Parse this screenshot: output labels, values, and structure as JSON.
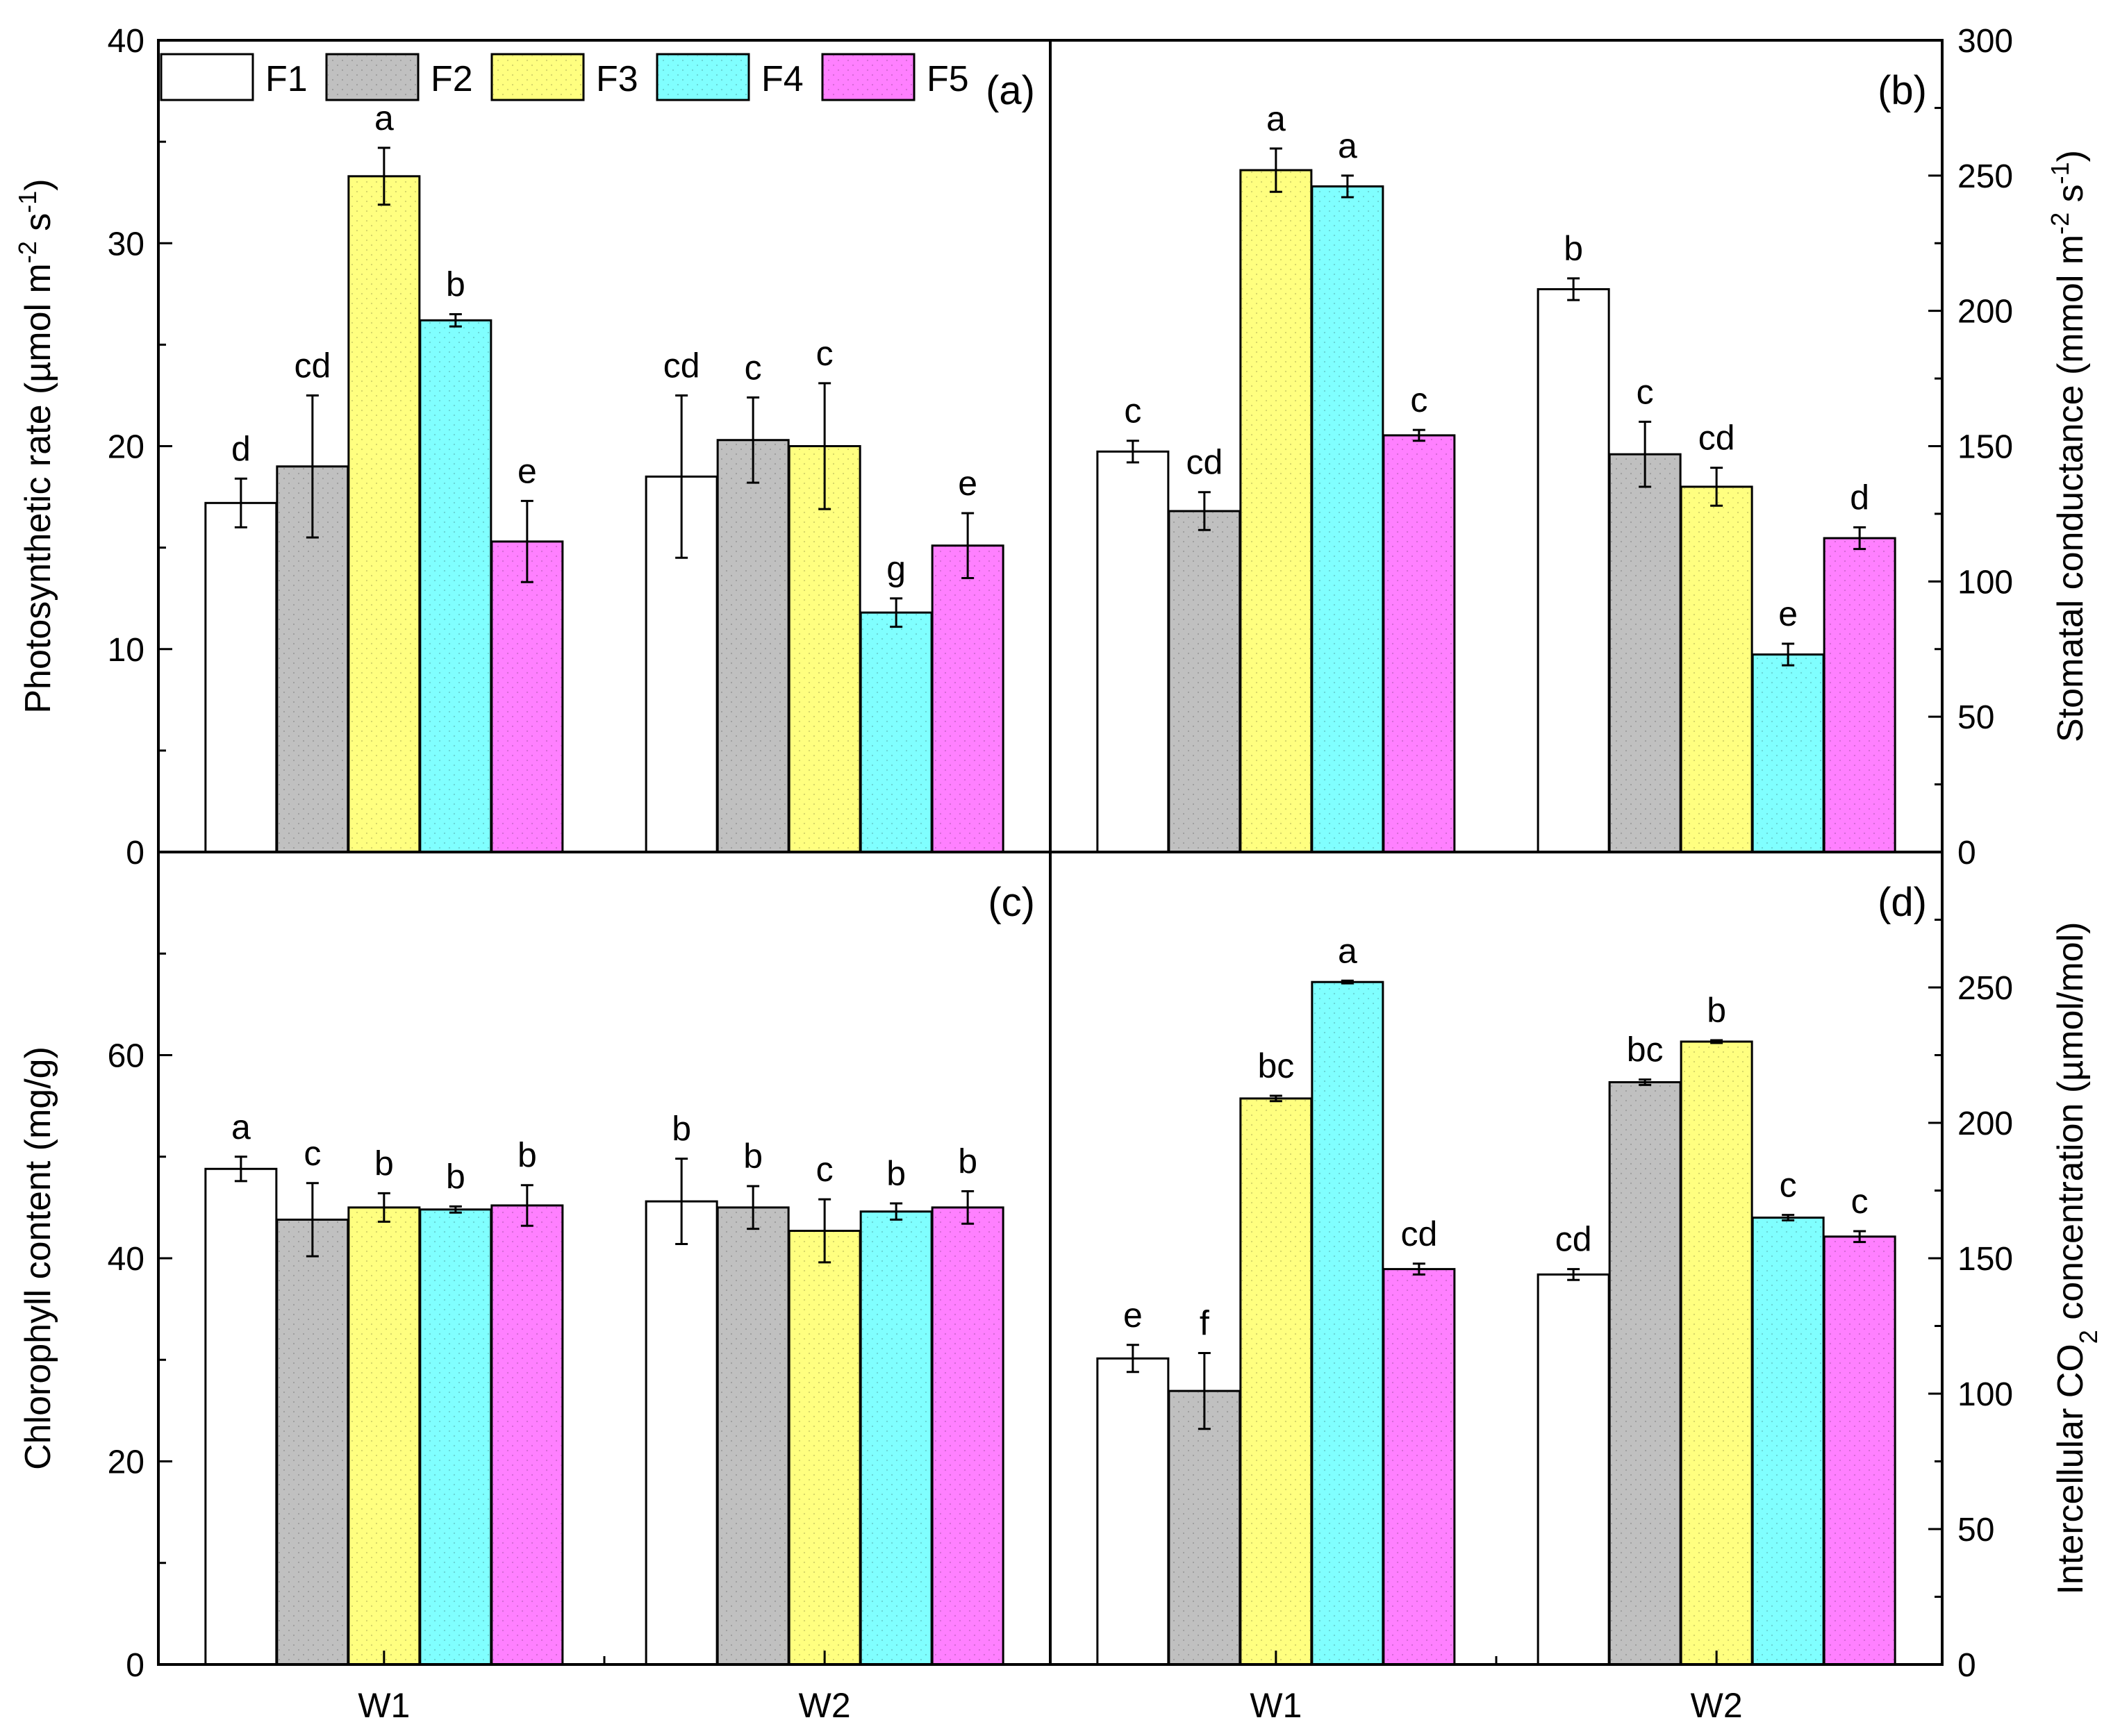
{
  "legend": {
    "items": [
      {
        "name": "F1",
        "color": "#ffffff"
      },
      {
        "name": "F2",
        "color": "#c0c0c0"
      },
      {
        "name": "F3",
        "color": "#ffff80"
      },
      {
        "name": "F4",
        "color": "#80ffff"
      },
      {
        "name": "F5",
        "color": "#ff80ff"
      }
    ]
  },
  "chart_data": [
    {
      "type": "bar",
      "panel": "(a)",
      "title": "",
      "xlabel": "",
      "ylabel": "Photosynthetic rate  (µmol m-2 s-1)",
      "ylabel_parts": {
        "main": "Photosynthetic rate  (µmol m",
        "sup1": "-2",
        "mid": " s",
        "sup2": "-1",
        "end": ")"
      },
      "ylim": [
        0,
        40
      ],
      "yticks": [
        "0",
        "10",
        "20",
        "30",
        "40"
      ],
      "categories": [
        "W1",
        "W2"
      ],
      "series": [
        {
          "name": "F1",
          "values": [
            17.2,
            18.5
          ],
          "errors": [
            1.2,
            4.0
          ],
          "letters": [
            "d",
            "cd"
          ]
        },
        {
          "name": "F2",
          "values": [
            19.0,
            20.3
          ],
          "errors": [
            3.5,
            2.1
          ],
          "letters": [
            "cd",
            "c"
          ]
        },
        {
          "name": "F3",
          "values": [
            33.3,
            20.0
          ],
          "errors": [
            1.4,
            3.1
          ],
          "letters": [
            "a",
            "c"
          ]
        },
        {
          "name": "F4",
          "values": [
            26.2,
            11.8
          ],
          "errors": [
            0.3,
            0.7
          ],
          "letters": [
            "b",
            "g"
          ]
        },
        {
          "name": "F5",
          "values": [
            15.3,
            15.1
          ],
          "errors": [
            2.0,
            1.6
          ],
          "letters": [
            "e",
            "e"
          ]
        }
      ]
    },
    {
      "type": "bar",
      "panel": "(b)",
      "title": "",
      "xlabel": "",
      "ylabel": "Stomatal conductance (mmol m-2 s-1)",
      "ylabel_parts": {
        "main": "Stomatal conductance (mmol m",
        "sup1": "-2",
        "mid": " s",
        "sup2": "-1",
        "end": ")"
      },
      "ylim": [
        0,
        300
      ],
      "yticks": [
        "0",
        "50",
        "100",
        "150",
        "200",
        "250",
        "300"
      ],
      "categories": [
        "W1",
        "W2"
      ],
      "series": [
        {
          "name": "F1",
          "values": [
            148,
            208
          ],
          "errors": [
            4,
            4
          ],
          "letters": [
            "c",
            "b"
          ]
        },
        {
          "name": "F2",
          "values": [
            126,
            147
          ],
          "errors": [
            7,
            12
          ],
          "letters": [
            "cd",
            "c"
          ]
        },
        {
          "name": "F3",
          "values": [
            252,
            135
          ],
          "errors": [
            8,
            7
          ],
          "letters": [
            "a",
            "cd"
          ]
        },
        {
          "name": "F4",
          "values": [
            246,
            73
          ],
          "errors": [
            4,
            4
          ],
          "letters": [
            "a",
            "e"
          ]
        },
        {
          "name": "F5",
          "values": [
            154,
            116
          ],
          "errors": [
            2,
            4
          ],
          "letters": [
            "c",
            "d"
          ]
        }
      ]
    },
    {
      "type": "bar",
      "panel": "(c)",
      "title": "",
      "xlabel": "",
      "ylabel": "Chlorophyll content (mg/g)",
      "ylim": [
        0,
        80
      ],
      "yticks": [
        "0",
        "20",
        "40",
        "60"
      ],
      "categories": [
        "W1",
        "W2"
      ],
      "series": [
        {
          "name": "F1",
          "values": [
            48.8,
            45.6
          ],
          "errors": [
            1.2,
            4.2
          ],
          "letters": [
            "a",
            "b"
          ]
        },
        {
          "name": "F2",
          "values": [
            43.8,
            45.0
          ],
          "errors": [
            3.6,
            2.1
          ],
          "letters": [
            "c",
            "b"
          ]
        },
        {
          "name": "F3",
          "values": [
            45.0,
            42.7
          ],
          "errors": [
            1.4,
            3.1
          ],
          "letters": [
            "b",
            "c"
          ]
        },
        {
          "name": "F4",
          "values": [
            44.8,
            44.6
          ],
          "errors": [
            0.3,
            0.8
          ],
          "letters": [
            "b",
            "b"
          ]
        },
        {
          "name": "F5",
          "values": [
            45.2,
            45.0
          ],
          "errors": [
            2.0,
            1.6
          ],
          "letters": [
            "b",
            "b"
          ]
        }
      ]
    },
    {
      "type": "bar",
      "panel": "(d)",
      "title": "",
      "xlabel": "",
      "ylabel": "Intercellular CO2 concentration (µmol/mol)",
      "ylabel_parts": {
        "main": "Intercellular CO",
        "sub": "2",
        "end": " concentration (µmol/mol)"
      },
      "ylim": [
        0,
        300
      ],
      "yticks": [
        "0",
        "50",
        "100",
        "150",
        "200",
        "250"
      ],
      "categories": [
        "W1",
        "W2"
      ],
      "series": [
        {
          "name": "F1",
          "values": [
            113,
            144
          ],
          "errors": [
            5,
            2
          ],
          "letters": [
            "e",
            "cd"
          ]
        },
        {
          "name": "F2",
          "values": [
            101,
            215
          ],
          "errors": [
            14,
            1
          ],
          "letters": [
            "f",
            "bc"
          ]
        },
        {
          "name": "F3",
          "values": [
            209,
            230
          ],
          "errors": [
            1,
            0.5
          ],
          "letters": [
            "bc",
            "b"
          ]
        },
        {
          "name": "F4",
          "values": [
            252,
            165
          ],
          "errors": [
            0.5,
            1
          ],
          "letters": [
            "a",
            "c"
          ]
        },
        {
          "name": "F5",
          "values": [
            146,
            158
          ],
          "errors": [
            2,
            2
          ],
          "letters": [
            "cd",
            "c"
          ]
        }
      ]
    }
  ]
}
